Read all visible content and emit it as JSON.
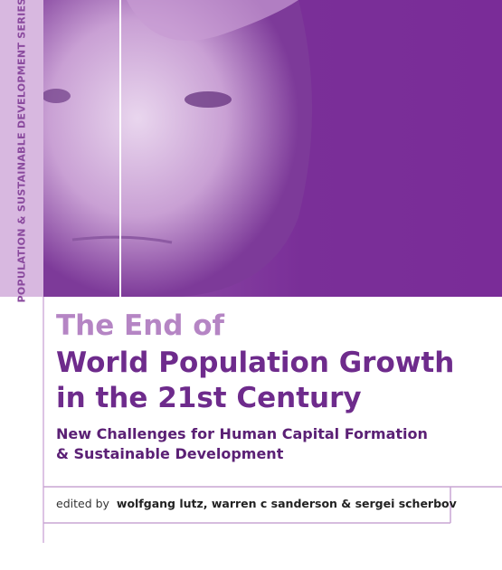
{
  "series": "POPULATION & SUSTAINABLE DEVELOPMENT SERIES",
  "title": [
    "The End of",
    "World Population Growth",
    "in the 21st Century"
  ],
  "subtitle": [
    "New Challenges for Human Capital Formation",
    "& Sustainable Development"
  ],
  "editors": {
    "prefix": "edited by",
    "names": "wolfgang lutz, warren c sanderson & sergei scherbov"
  }
}
